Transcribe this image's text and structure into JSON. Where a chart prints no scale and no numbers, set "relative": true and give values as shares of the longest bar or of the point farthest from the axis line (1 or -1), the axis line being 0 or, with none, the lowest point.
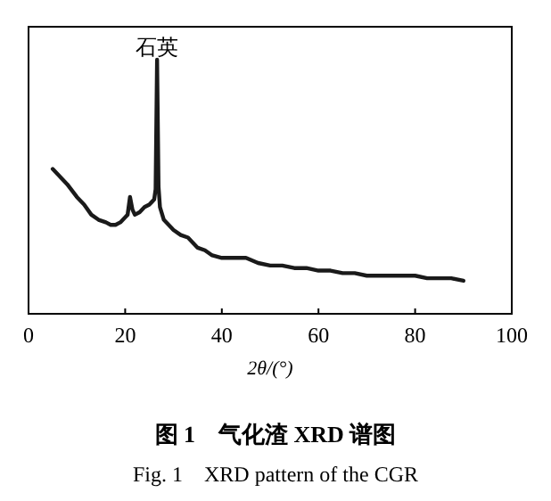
{
  "chart_data": {
    "type": "line",
    "title": "图 1　气化渣 XRD 谱图",
    "subtitle": "Fig. 1　XRD pattern of the CGR",
    "xlabel": "2θ/(°)",
    "relative": true,
    "color": "#1a1a1a",
    "x": [
      5,
      6,
      7,
      8,
      10,
      11.5,
      13,
      14.5,
      16,
      17,
      18,
      19,
      20,
      20.5,
      21,
      21.5,
      22,
      23,
      24,
      25,
      25.5,
      26,
      26.3,
      26.6,
      26.9,
      27.2,
      28,
      29,
      30,
      31.5,
      33,
      34,
      35,
      36.5,
      38,
      40,
      42.5,
      45,
      47.5,
      50,
      52.5,
      55,
      57.5,
      60,
      62.5,
      65,
      67.5,
      70,
      72.5,
      75,
      77.5,
      80,
      82.5,
      85,
      87.5,
      90
    ],
    "values": [
      0.57,
      0.55,
      0.53,
      0.51,
      0.46,
      0.43,
      0.39,
      0.37,
      0.36,
      0.35,
      0.35,
      0.36,
      0.38,
      0.39,
      0.46,
      0.41,
      0.39,
      0.4,
      0.42,
      0.43,
      0.44,
      0.45,
      0.49,
      1,
      0.5,
      0.42,
      0.37,
      0.35,
      0.33,
      0.31,
      0.3,
      0.28,
      0.26,
      0.25,
      0.23,
      0.22,
      0.22,
      0.22,
      0.2,
      0.19,
      0.19,
      0.18,
      0.18,
      0.17,
      0.17,
      0.16,
      0.16,
      0.15,
      0.15,
      0.15,
      0.15,
      0.15,
      0.14,
      0.14,
      0.14,
      0.13
    ],
    "xlim": [
      0,
      100
    ],
    "xticks": [
      0,
      20,
      40,
      60,
      80,
      100
    ],
    "annotations": [
      {
        "text": "石英",
        "x": 26.6,
        "y": 1
      }
    ]
  }
}
